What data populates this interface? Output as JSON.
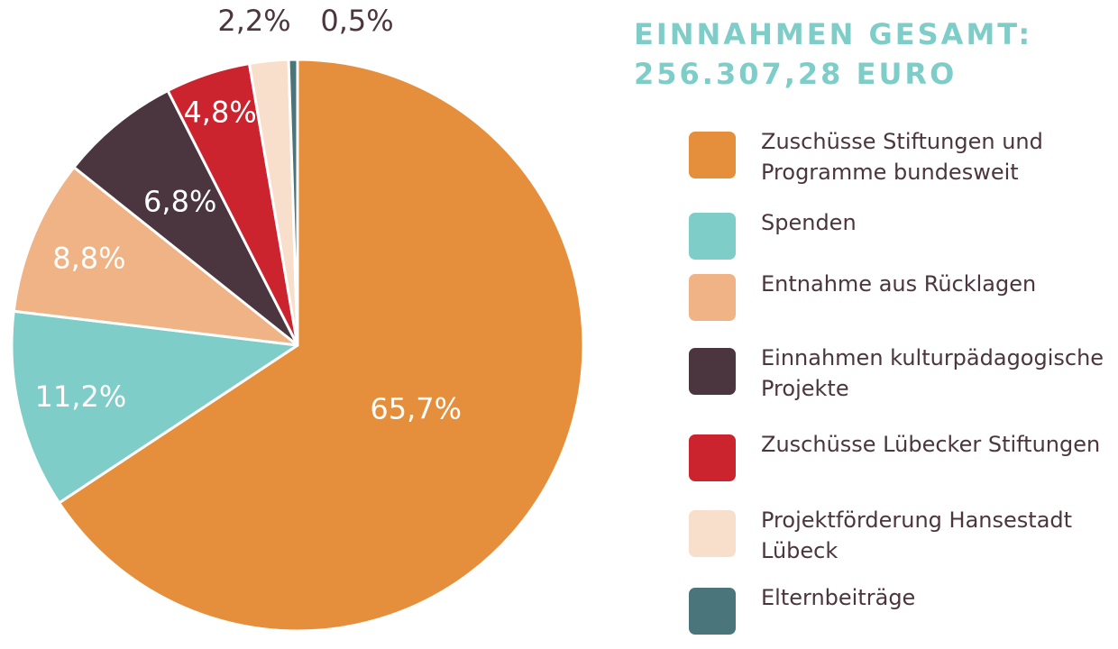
{
  "title": {
    "line1": "EINNAHMEN GESAMT:",
    "line2": "256.307,28 EURO",
    "color": "#7ecdc8"
  },
  "text_color": "#4b353e",
  "chart_data": {
    "type": "pie",
    "title": "EINNAHMEN GESAMT: 256.307,28 EURO",
    "unit": "%",
    "legend_position": "right",
    "slices": [
      {
        "name": "Zuschüsse Stiftungen und Programme bundesweit",
        "value": 65.7,
        "label": "65,7%",
        "color": "#e58e3b"
      },
      {
        "name": "Spenden",
        "value": 11.2,
        "label": "11,2%",
        "color": "#7ecdc8"
      },
      {
        "name": "Entnahme aus Rücklagen",
        "value": 8.8,
        "label": "8,8%",
        "color": "#f0b385"
      },
      {
        "name": "Einnahmen kulturpädagogische Projekte",
        "value": 6.8,
        "label": "6,8%",
        "color": "#4b353e"
      },
      {
        "name": "Zuschüsse Lübecker Stiftungen",
        "value": 4.8,
        "label": "4,8%",
        "color": "#cb242f"
      },
      {
        "name": "Projektförderung Hansestadt Lübeck",
        "value": 2.2,
        "label": "2,2%",
        "color": "#f7dfcb"
      },
      {
        "name": "Elternbeiträge",
        "value": 0.5,
        "label": "0,5%",
        "color": "#4a757b"
      }
    ]
  }
}
